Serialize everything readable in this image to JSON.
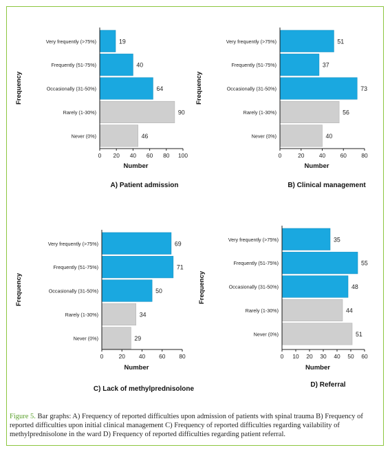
{
  "figure": {
    "label": "Figure 5.",
    "caption": " Bar graphs: A) Frequency of reported difficulties upon admission of patients with spinal trauma B) Frequency of reported difficulties upon initial clinical management C) Frequency of reported difficulties regarding vailability of methylprednisolone in the ward D) Frequency of reported difficulties regarding patient referral.",
    "frame_color": "#8cc63f",
    "label_color": "#5aa02c"
  },
  "colors": {
    "frequent_bar": "#1aa8e0",
    "rare_bar": "#cfcfcf",
    "frequent_bar_edge": "#1590c2",
    "rare_bar_edge": "#b5b5b5"
  },
  "chart_data": [
    {
      "type": "bar",
      "orientation": "horizontal",
      "title": "A) Patient admission",
      "xlabel": "Number",
      "ylabel": "Frequency",
      "categories": [
        "Very frequently (>75%)",
        "Frequently (51-75%)",
        "Occasionally (31-50%)",
        "Rarely (1-30%)",
        "Never (0%)"
      ],
      "values": [
        19,
        40,
        64,
        90,
        46
      ],
      "bar_colors": [
        "blue",
        "blue",
        "blue",
        "gray",
        "gray"
      ],
      "xlim": [
        0,
        100
      ],
      "xticks": [
        0,
        20,
        40,
        60,
        80,
        100
      ],
      "grid": false
    },
    {
      "type": "bar",
      "orientation": "horizontal",
      "title": "B) Clinical management",
      "xlabel": "Number",
      "ylabel": "Frequency",
      "categories": [
        "Very frequently (>75%)",
        "Frequently (51-75%)",
        "Occasionally (31-50%)",
        "Rarely (1-30%)",
        "Never (0%)"
      ],
      "values": [
        51,
        37,
        73,
        56,
        40
      ],
      "bar_colors": [
        "blue",
        "blue",
        "blue",
        "gray",
        "gray"
      ],
      "xlim": [
        0,
        80
      ],
      "xticks": [
        0,
        20,
        40,
        60,
        80
      ],
      "grid": false
    },
    {
      "type": "bar",
      "orientation": "horizontal",
      "title": "C) Lack of methylprednisolone",
      "xlabel": "Number",
      "ylabel": "Frequency",
      "categories": [
        "Very frequently (>75%)",
        "Frequently (51-75%)",
        "Occasionally (31-50%)",
        "Rarely (1-30%)",
        "Never (0%)"
      ],
      "values": [
        69,
        71,
        50,
        34,
        29
      ],
      "bar_colors": [
        "blue",
        "blue",
        "blue",
        "gray",
        "gray"
      ],
      "xlim": [
        0,
        80
      ],
      "xticks": [
        0,
        20,
        40,
        60,
        80
      ],
      "grid": false
    },
    {
      "type": "bar",
      "orientation": "horizontal",
      "title": "D) Referral",
      "xlabel": "Number",
      "ylabel": "Frequency",
      "categories": [
        "Very frequently (>75%)",
        "Frequently (51-75%)",
        "Occasionally (31-50%)",
        "Rarely (1-30%)",
        "Never (0%)"
      ],
      "values": [
        35,
        55,
        48,
        44,
        51
      ],
      "bar_colors": [
        "blue",
        "blue",
        "blue",
        "gray",
        "gray"
      ],
      "xlim": [
        0,
        60
      ],
      "xticks": [
        0,
        10,
        20,
        30,
        40,
        50,
        60
      ],
      "grid": false
    }
  ]
}
